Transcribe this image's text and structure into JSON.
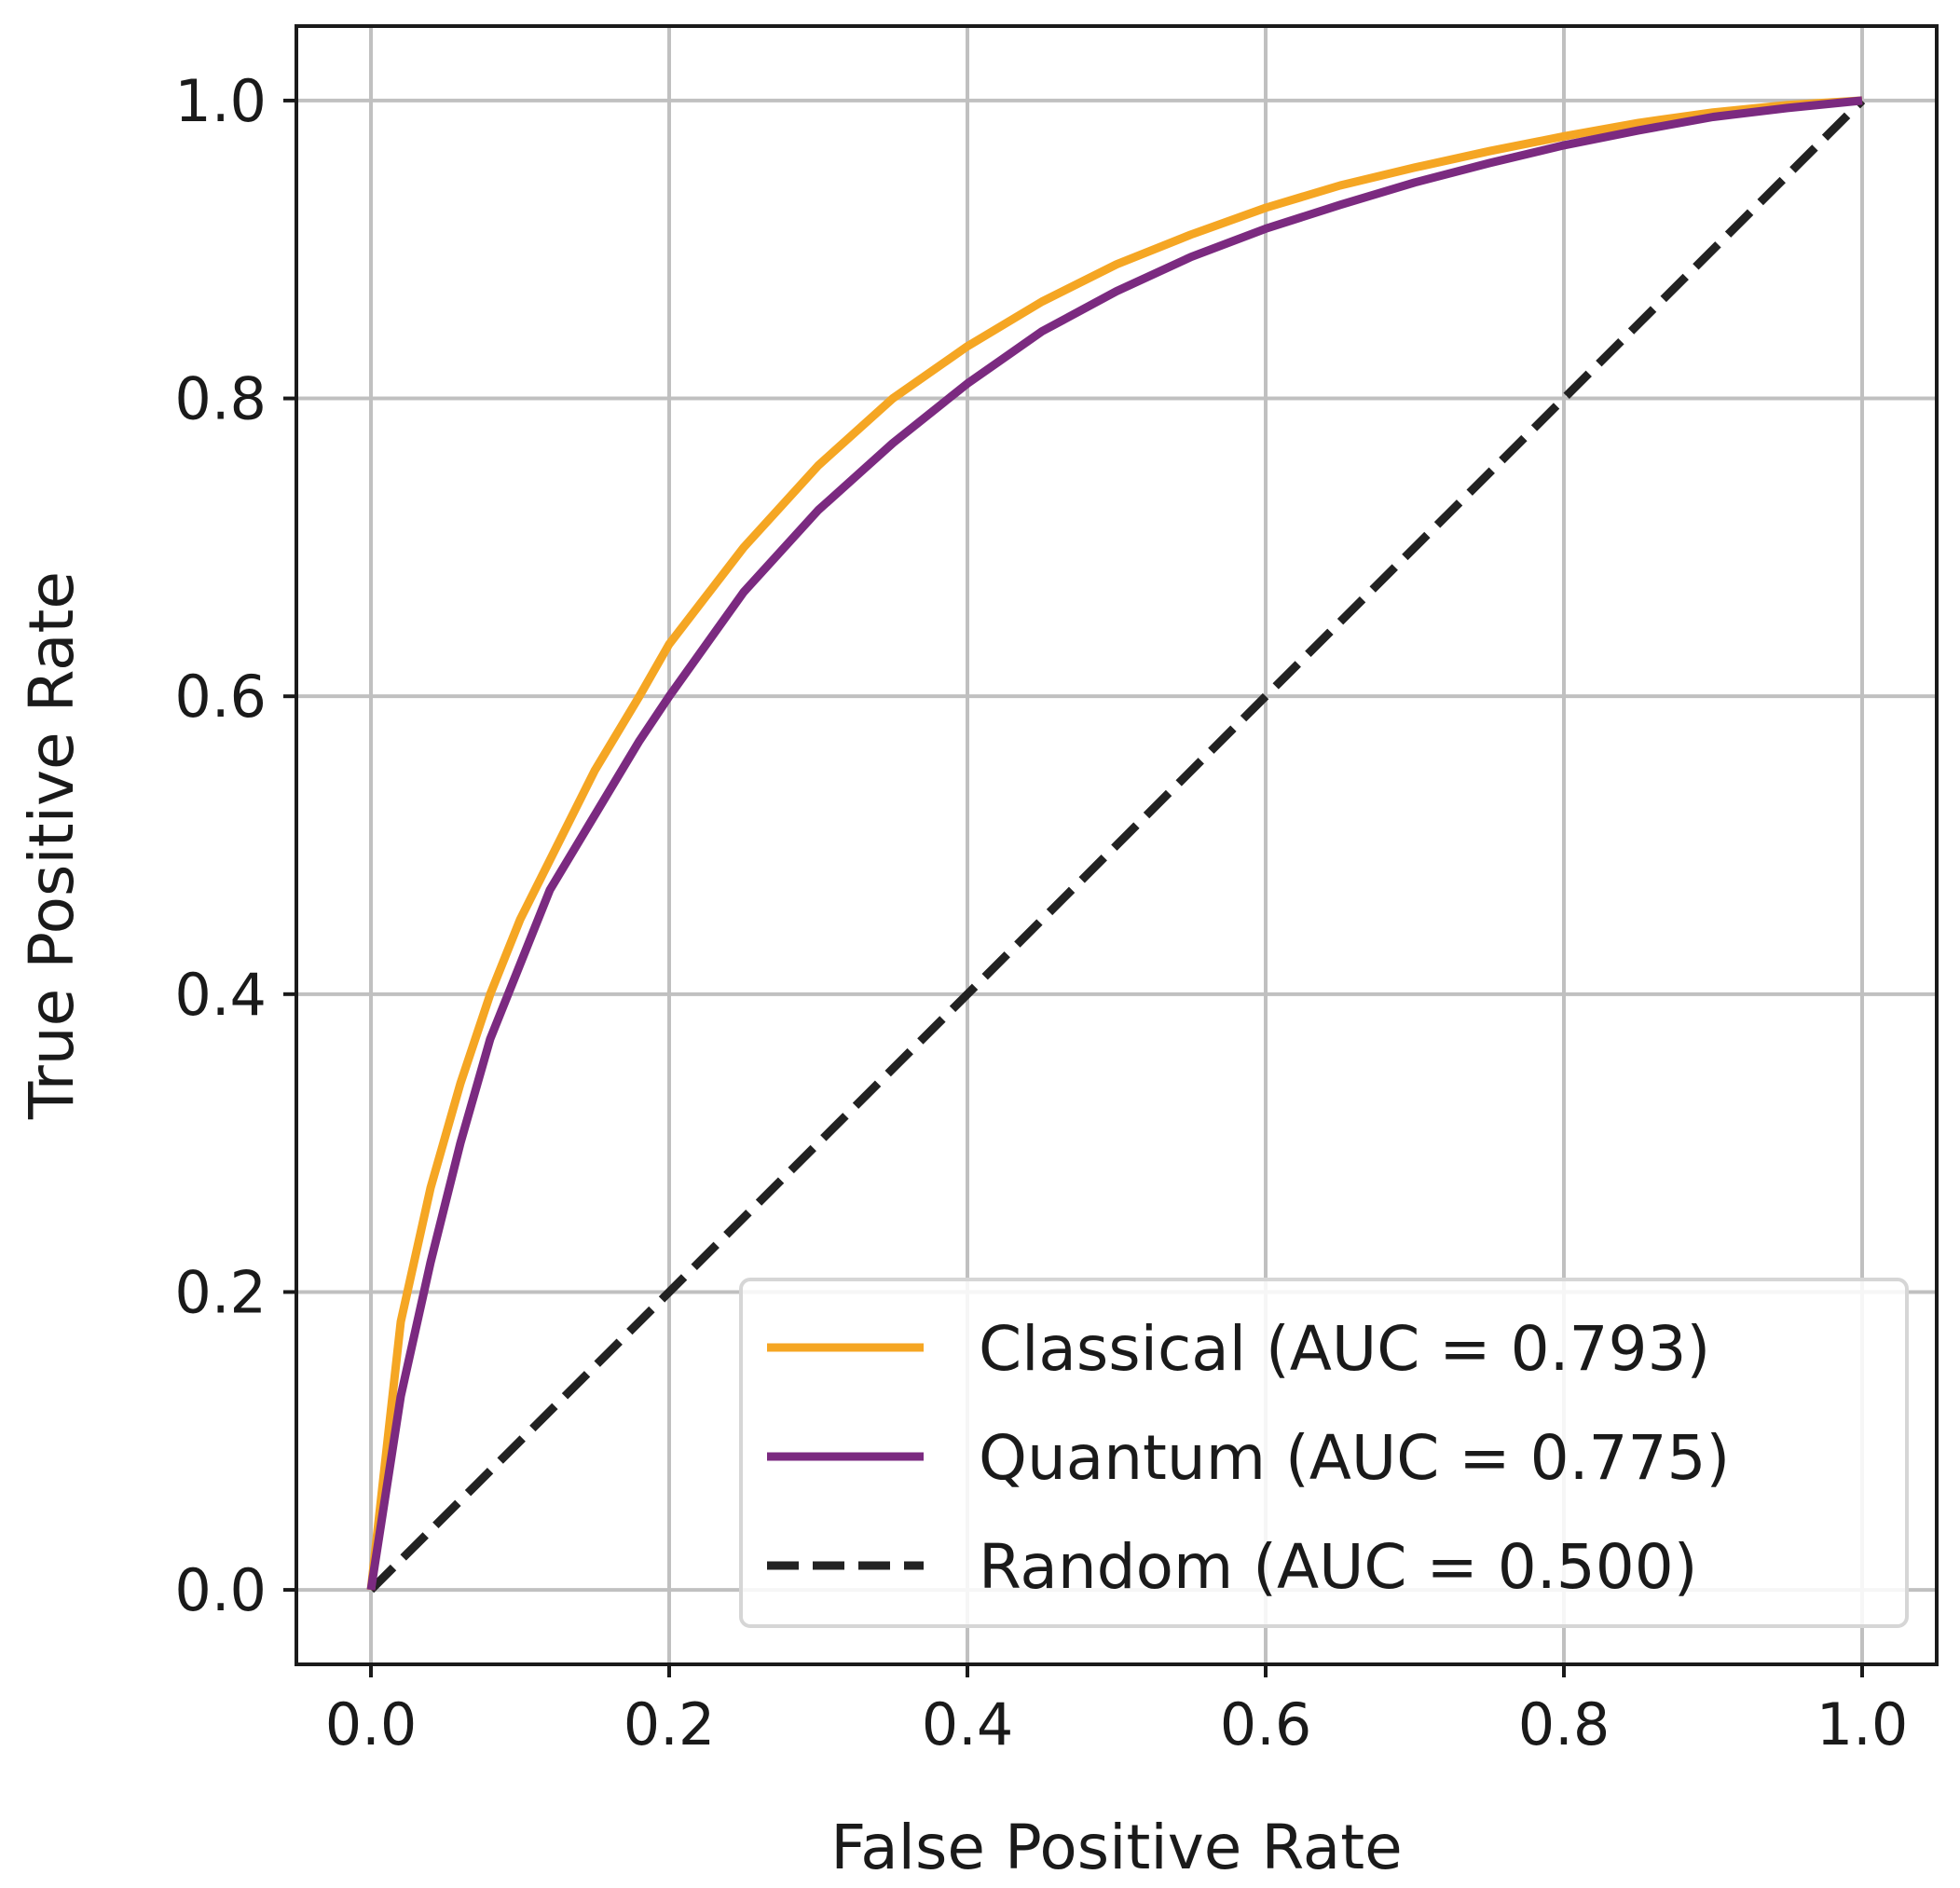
{
  "chart_data": {
    "type": "line",
    "title": "",
    "xlabel": "False Positive Rate",
    "ylabel": "True Positive Rate",
    "xlim": [
      -0.05,
      1.05
    ],
    "ylim": [
      -0.05,
      1.05
    ],
    "xticks": [
      0.0,
      0.2,
      0.4,
      0.6,
      0.8,
      1.0
    ],
    "yticks": [
      0.0,
      0.2,
      0.4,
      0.6,
      0.8,
      1.0
    ],
    "xtick_labels": [
      "0.0",
      "0.2",
      "0.4",
      "0.6",
      "0.8",
      "1.0"
    ],
    "ytick_labels": [
      "0.0",
      "0.2",
      "0.4",
      "0.6",
      "0.8",
      "1.0"
    ],
    "grid": true,
    "legend_position": "lower-right",
    "series": [
      {
        "name": "Classical (AUC = 0.793)",
        "color": "#f5a623",
        "style": "solid",
        "x": [
          0.0,
          0.02,
          0.04,
          0.06,
          0.08,
          0.1,
          0.12,
          0.15,
          0.18,
          0.2,
          0.25,
          0.3,
          0.35,
          0.4,
          0.45,
          0.5,
          0.55,
          0.6,
          0.65,
          0.7,
          0.75,
          0.8,
          0.85,
          0.9,
          0.95,
          1.0
        ],
        "y": [
          0.0,
          0.18,
          0.27,
          0.34,
          0.4,
          0.45,
          0.49,
          0.55,
          0.6,
          0.635,
          0.7,
          0.755,
          0.8,
          0.835,
          0.865,
          0.89,
          0.91,
          0.928,
          0.943,
          0.955,
          0.966,
          0.976,
          0.985,
          0.992,
          0.997,
          1.0
        ]
      },
      {
        "name": "Quantum (AUC = 0.775)",
        "color": "#7b2a80",
        "style": "solid",
        "x": [
          0.0,
          0.02,
          0.04,
          0.06,
          0.08,
          0.1,
          0.12,
          0.15,
          0.18,
          0.2,
          0.25,
          0.3,
          0.35,
          0.4,
          0.45,
          0.5,
          0.55,
          0.6,
          0.65,
          0.7,
          0.75,
          0.8,
          0.85,
          0.9,
          0.95,
          1.0
        ],
        "y": [
          0.0,
          0.13,
          0.22,
          0.3,
          0.37,
          0.42,
          0.47,
          0.52,
          0.57,
          0.6,
          0.67,
          0.725,
          0.77,
          0.81,
          0.845,
          0.872,
          0.895,
          0.914,
          0.93,
          0.945,
          0.958,
          0.97,
          0.98,
          0.989,
          0.995,
          1.0
        ]
      },
      {
        "name": "Random (AUC = 0.500)",
        "color": "#222222",
        "style": "dashed",
        "x": [
          0.0,
          1.0
        ],
        "y": [
          0.0,
          1.0
        ]
      }
    ]
  }
}
